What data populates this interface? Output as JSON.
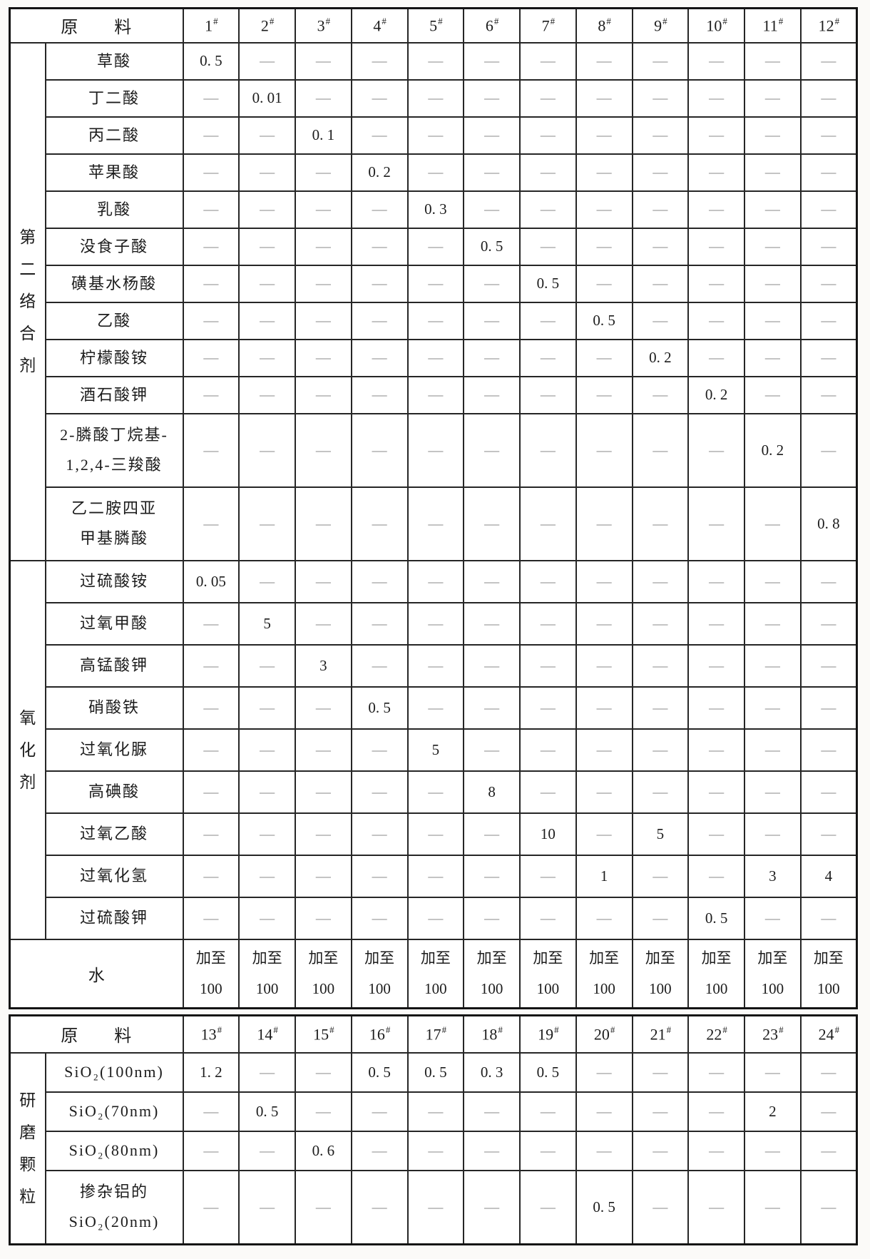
{
  "colors": {
    "ink": "#1c1c1c",
    "dash": "#8a8a8a",
    "grid": "#262626",
    "page_bg": "#fbfaf8",
    "table_bg": "#ffffff"
  },
  "table1": {
    "corner_label": "原　　料",
    "col_suffix": "#",
    "dash": "—",
    "columns": [
      "1",
      "2",
      "3",
      "4",
      "5",
      "6",
      "7",
      "8",
      "9",
      "10",
      "11",
      "12"
    ],
    "groups": [
      {
        "label": [
          "第",
          "二",
          "络",
          "合",
          "剂"
        ],
        "rows": [
          {
            "name": [
              "草酸"
            ],
            "values": [
              "0. 5",
              "—",
              "—",
              "—",
              "—",
              "—",
              "—",
              "—",
              "—",
              "—",
              "—",
              "—"
            ]
          },
          {
            "name": [
              "丁二酸"
            ],
            "values": [
              "—",
              "0. 01",
              "—",
              "—",
              "—",
              "—",
              "—",
              "—",
              "—",
              "—",
              "—",
              "—"
            ]
          },
          {
            "name": [
              "丙二酸"
            ],
            "values": [
              "—",
              "—",
              "0. 1",
              "—",
              "—",
              "—",
              "—",
              "—",
              "—",
              "—",
              "—",
              "—"
            ]
          },
          {
            "name": [
              "苹果酸"
            ],
            "values": [
              "—",
              "—",
              "—",
              "0. 2",
              "—",
              "—",
              "—",
              "—",
              "—",
              "—",
              "—",
              "—"
            ]
          },
          {
            "name": [
              "乳酸"
            ],
            "values": [
              "—",
              "—",
              "—",
              "—",
              "0. 3",
              "—",
              "—",
              "—",
              "—",
              "—",
              "—",
              "—"
            ]
          },
          {
            "name": [
              "没食子酸"
            ],
            "values": [
              "—",
              "—",
              "—",
              "—",
              "—",
              "0. 5",
              "—",
              "—",
              "—",
              "—",
              "—",
              "—"
            ]
          },
          {
            "name": [
              "磺基水杨酸"
            ],
            "values": [
              "—",
              "—",
              "—",
              "—",
              "—",
              "—",
              "0. 5",
              "—",
              "—",
              "—",
              "—",
              "—"
            ]
          },
          {
            "name": [
              "乙酸"
            ],
            "values": [
              "—",
              "—",
              "—",
              "—",
              "—",
              "—",
              "—",
              "0. 5",
              "—",
              "—",
              "—",
              "—"
            ]
          },
          {
            "name": [
              "柠檬酸铵"
            ],
            "values": [
              "—",
              "—",
              "—",
              "—",
              "—",
              "—",
              "—",
              "—",
              "0. 2",
              "—",
              "—",
              "—"
            ]
          },
          {
            "name": [
              "酒石酸钾"
            ],
            "values": [
              "—",
              "—",
              "—",
              "—",
              "—",
              "—",
              "—",
              "—",
              "—",
              "0. 2",
              "—",
              "—"
            ]
          },
          {
            "name": [
              "2-膦酸丁烷基-",
              "1,2,4-三羧酸"
            ],
            "values": [
              "—",
              "—",
              "—",
              "—",
              "—",
              "—",
              "—",
              "—",
              "—",
              "—",
              "0. 2",
              "—"
            ]
          },
          {
            "name": [
              "乙二胺四亚",
              "甲基膦酸"
            ],
            "values": [
              "—",
              "—",
              "—",
              "—",
              "—",
              "—",
              "—",
              "—",
              "—",
              "—",
              "—",
              "0. 8"
            ]
          }
        ]
      },
      {
        "label": [
          "氧",
          "化",
          "剂"
        ],
        "rows": [
          {
            "name": [
              "过硫酸铵"
            ],
            "values": [
              "0. 05",
              "—",
              "—",
              "—",
              "—",
              "—",
              "—",
              "—",
              "—",
              "—",
              "—",
              "—"
            ]
          },
          {
            "name": [
              "过氧甲酸"
            ],
            "values": [
              "—",
              "5",
              "—",
              "—",
              "—",
              "—",
              "—",
              "—",
              "—",
              "—",
              "—",
              "—"
            ]
          },
          {
            "name": [
              "高锰酸钾"
            ],
            "values": [
              "—",
              "—",
              "3",
              "—",
              "—",
              "—",
              "—",
              "—",
              "—",
              "—",
              "—",
              "—"
            ]
          },
          {
            "name": [
              "硝酸铁"
            ],
            "values": [
              "—",
              "—",
              "—",
              "0. 5",
              "—",
              "—",
              "—",
              "—",
              "—",
              "—",
              "—",
              "—"
            ]
          },
          {
            "name": [
              "过氧化脲"
            ],
            "values": [
              "—",
              "—",
              "—",
              "—",
              "5",
              "—",
              "—",
              "—",
              "—",
              "—",
              "—",
              "—"
            ]
          },
          {
            "name": [
              "高碘酸"
            ],
            "values": [
              "—",
              "—",
              "—",
              "—",
              "—",
              "8",
              "—",
              "—",
              "—",
              "—",
              "—",
              "—"
            ]
          },
          {
            "name": [
              "过氧乙酸"
            ],
            "values": [
              "—",
              "—",
              "—",
              "—",
              "—",
              "—",
              "10",
              "—",
              "5",
              "—",
              "—",
              "—"
            ]
          },
          {
            "name": [
              "过氧化氢"
            ],
            "values": [
              "—",
              "—",
              "—",
              "—",
              "—",
              "—",
              "—",
              "1",
              "—",
              "—",
              "3",
              "4"
            ]
          },
          {
            "name": [
              "过硫酸钾"
            ],
            "values": [
              "—",
              "—",
              "—",
              "—",
              "—",
              "—",
              "—",
              "—",
              "—",
              "0. 5",
              "—",
              "—"
            ]
          }
        ]
      }
    ],
    "water_row": {
      "label": "水",
      "lines": [
        "加至",
        "100"
      ]
    }
  },
  "table2": {
    "corner_label": "原　　料",
    "col_suffix": "#",
    "dash": "—",
    "columns": [
      "13",
      "14",
      "15",
      "16",
      "17",
      "18",
      "19",
      "20",
      "21",
      "22",
      "23",
      "24"
    ],
    "groups": [
      {
        "label": [
          "研",
          "磨",
          "颗",
          "粒"
        ],
        "rows": [
          {
            "name": [
              "SiO₂(100nm)"
            ],
            "values": [
              "1. 2",
              "—",
              "—",
              "0. 5",
              "0. 5",
              "0. 3",
              "0. 5",
              "—",
              "—",
              "—",
              "—",
              "—"
            ]
          },
          {
            "name": [
              "SiO₂(70nm)"
            ],
            "values": [
              "—",
              "0. 5",
              "—",
              "—",
              "—",
              "—",
              "—",
              "—",
              "—",
              "—",
              "2",
              "—"
            ]
          },
          {
            "name": [
              "SiO₂(80nm)"
            ],
            "values": [
              "—",
              "—",
              "0. 6",
              "—",
              "—",
              "—",
              "—",
              "—",
              "—",
              "—",
              "—",
              "—"
            ]
          },
          {
            "name": [
              "掺杂铝的",
              "SiO₂(20nm)"
            ],
            "values": [
              "—",
              "—",
              "—",
              "—",
              "—",
              "—",
              "—",
              "0. 5",
              "—",
              "—",
              "—",
              "—"
            ]
          }
        ]
      }
    ]
  }
}
